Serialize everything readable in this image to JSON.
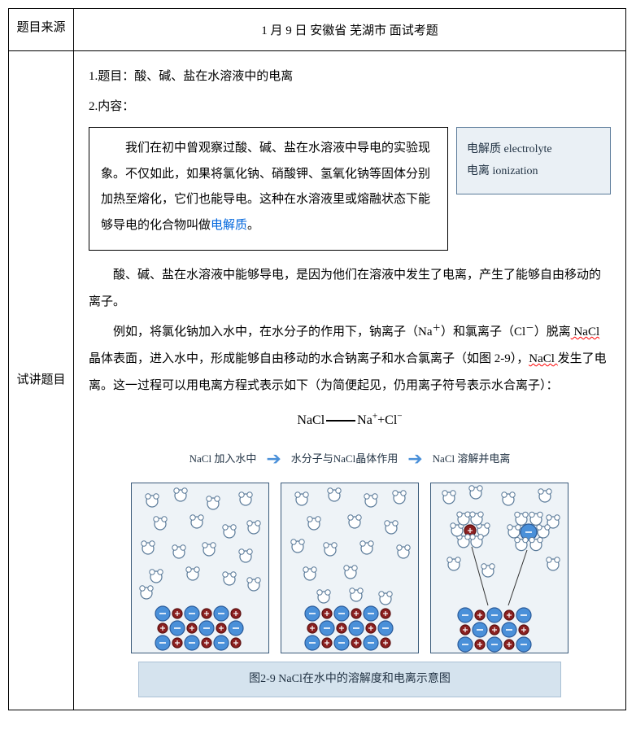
{
  "header": {
    "label": "题目来源",
    "content": "1 月 9 日  安徽省  芜湖市  面试考题"
  },
  "main": {
    "label": "试讲题目",
    "line1": "1.题目：酸、碱、盐在水溶液中的电离",
    "line2": "2.内容：",
    "textbox": {
      "p1a": "我们在初中曾观察过酸、碱、盐在水溶液中导电的实验现象。不仅如此，如果将氯化钠、硝酸钾、氢氧化钠等固体分别加热至熔化，它们也能导电。这种在水溶液里或熔融状态下能够导电的化合物叫做",
      "link": "电解质",
      "p1b": "。"
    },
    "vocab": {
      "l1a": "电解质 ",
      "l1b": "electrolyte",
      "l2a": "电离 ",
      "l2b": "ionization"
    },
    "para2": "酸、碱、盐在水溶液中能够导电，是因为他们在溶液中发生了电离，产生了能够自由移动的离子。",
    "para3a": "例如，将氯化钠加入水中，在水分子的作用下，钠离子（Na",
    "para3a_sup": "＋",
    "para3b": "）和氯离子（Cl",
    "para3b_sup": "－",
    "para3c": "）脱离",
    "para3_nacl1": " NaCl ",
    "para3d": "晶体表面，进入水中，形成能够自由移动的水合钠离子和水合氯离子（如图 2-9），",
    "para3_nacl2": "NaCl ",
    "para3e": "发生了电离。这一过程可以用电离方程式表示如下（为简便起见，仍用离子符号表示水合离子）：",
    "equation": {
      "lhs": "NaCl",
      "rhs_a": "Na",
      "rhs_a_sup": "+",
      "plus": "+",
      "rhs_b": "Cl",
      "rhs_b_sup": "−"
    },
    "diagram": {
      "h1": "NaCl 加入水中",
      "h2": "水分子与NaCl晶体作用",
      "h3": "NaCl 溶解并电离",
      "caption": "图2-9 NaCl在水中的溶解度和电离示意图"
    }
  },
  "colors": {
    "water_fill": "#ffffff",
    "water_stroke": "#5a7a99",
    "na_fill": "#4a90d9",
    "na_stroke": "#2a5a99",
    "cl_fill": "#8b2020",
    "cl_stroke": "#5a1010",
    "minus": "#ffffff",
    "panel_bg": "#eef3f7",
    "panel_border": "#3a5a7a"
  }
}
